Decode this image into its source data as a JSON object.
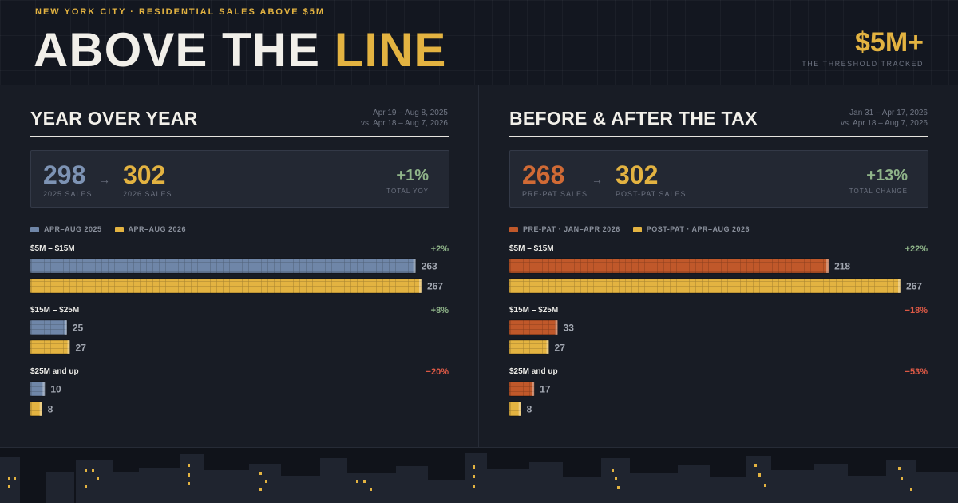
{
  "header": {
    "kicker": "NEW YORK CITY · RESIDENTIAL SALES ABOVE $5M",
    "title_main": "ABOVE THE ",
    "title_accent": "LINE",
    "threshold_value": "$5M+",
    "threshold_label": "THE THRESHOLD TRACKED"
  },
  "colors": {
    "gold": "#e3b341",
    "slate": "#6f86a8",
    "rust": "#c0582a",
    "positive": "#8fb489",
    "negative": "#e05a46",
    "background": "#181c25"
  },
  "panels": {
    "left": {
      "title": "YEAR OVER YEAR",
      "dates_line1": "Apr 19 – Aug 8, 2025",
      "dates_line2": "vs. Apr 18 – Aug 7, 2026",
      "stat_a_value": "298",
      "stat_a_label": "2025 SALES",
      "arrow": "→",
      "stat_b_value": "302",
      "stat_b_label": "2026 SALES",
      "change_value": "+1%",
      "change_label": "TOTAL YOY",
      "legend_a": "APR–AUG 2025",
      "legend_b": "APR–AUG 2026"
    },
    "right": {
      "title": "BEFORE & AFTER THE TAX",
      "dates_line1": "Jan 31 – Apr 17, 2026",
      "dates_line2": "vs. Apr 18 – Aug 7, 2026",
      "stat_a_value": "268",
      "stat_a_label": "PRE-PAT SALES",
      "arrow": "→",
      "stat_b_value": "302",
      "stat_b_label": "POST-PAT SALES",
      "change_value": "+13%",
      "change_label": "TOTAL CHANGE",
      "legend_a": "PRE-PAT · JAN–APR 2026",
      "legend_b": "POST-PAT · APR–AUG 2026"
    }
  },
  "chart_data": [
    {
      "type": "bar",
      "orientation": "horizontal",
      "categories": [
        "$5M – $15M",
        "$15M – $25M",
        "$25M and up"
      ],
      "series": [
        {
          "name": "APR–AUG 2025",
          "values": [
            263,
            25,
            10
          ],
          "color": "#6f86a8"
        },
        {
          "name": "APR–AUG 2026",
          "values": [
            267,
            27,
            8
          ],
          "color": "#e3b341"
        }
      ],
      "changes": [
        "+2%",
        "+8%",
        "−20%"
      ],
      "change_signs": [
        "pos",
        "pos",
        "neg"
      ],
      "xlim": [
        0,
        267
      ]
    },
    {
      "type": "bar",
      "orientation": "horizontal",
      "categories": [
        "$5M – $15M",
        "$15M – $25M",
        "$25M and up"
      ],
      "series": [
        {
          "name": "PRE-PAT · JAN–APR 2026",
          "values": [
            218,
            33,
            17
          ],
          "color": "#c0582a"
        },
        {
          "name": "POST-PAT · APR–AUG 2026",
          "values": [
            267,
            27,
            8
          ],
          "color": "#e3b341"
        }
      ],
      "changes": [
        "+22%",
        "−18%",
        "−53%"
      ],
      "change_signs": [
        "pos",
        "neg",
        "neg"
      ],
      "xlim": [
        0,
        267
      ]
    }
  ]
}
